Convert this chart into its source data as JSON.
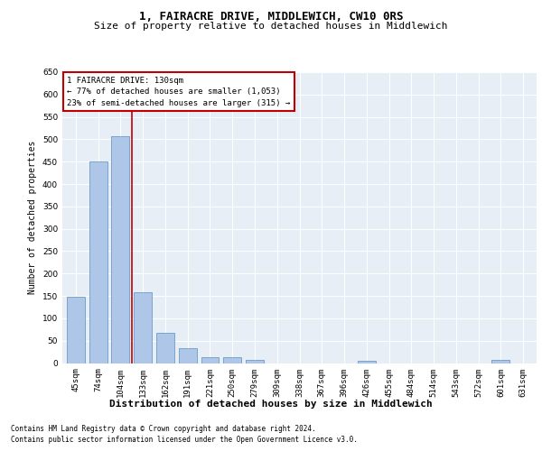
{
  "title": "1, FAIRACRE DRIVE, MIDDLEWICH, CW10 0RS",
  "subtitle": "Size of property relative to detached houses in Middlewich",
  "xlabel": "Distribution of detached houses by size in Middlewich",
  "ylabel": "Number of detached properties",
  "categories": [
    "45sqm",
    "74sqm",
    "104sqm",
    "133sqm",
    "162sqm",
    "191sqm",
    "221sqm",
    "250sqm",
    "279sqm",
    "309sqm",
    "338sqm",
    "367sqm",
    "396sqm",
    "426sqm",
    "455sqm",
    "484sqm",
    "514sqm",
    "543sqm",
    "572sqm",
    "601sqm",
    "631sqm"
  ],
  "values": [
    148,
    450,
    507,
    158,
    67,
    33,
    14,
    13,
    8,
    0,
    0,
    0,
    0,
    5,
    0,
    0,
    0,
    0,
    0,
    7,
    0
  ],
  "bar_color": "#aec6e8",
  "bar_edge_color": "#5a8fc0",
  "highlight_color": "#c00000",
  "annotation_box_text": "1 FAIRACRE DRIVE: 130sqm\n← 77% of detached houses are smaller (1,053)\n23% of semi-detached houses are larger (315) →",
  "ylim": [
    0,
    650
  ],
  "yticks": [
    0,
    50,
    100,
    150,
    200,
    250,
    300,
    350,
    400,
    450,
    500,
    550,
    600,
    650
  ],
  "plot_bg_color": "#e8eef5",
  "footer_line1": "Contains HM Land Registry data © Crown copyright and database right 2024.",
  "footer_line2": "Contains public sector information licensed under the Open Government Licence v3.0.",
  "title_fontsize": 9,
  "subtitle_fontsize": 8,
  "xlabel_fontsize": 8,
  "ylabel_fontsize": 7,
  "tick_fontsize": 6.5,
  "annotation_fontsize": 6.5,
  "footer_fontsize": 5.5
}
